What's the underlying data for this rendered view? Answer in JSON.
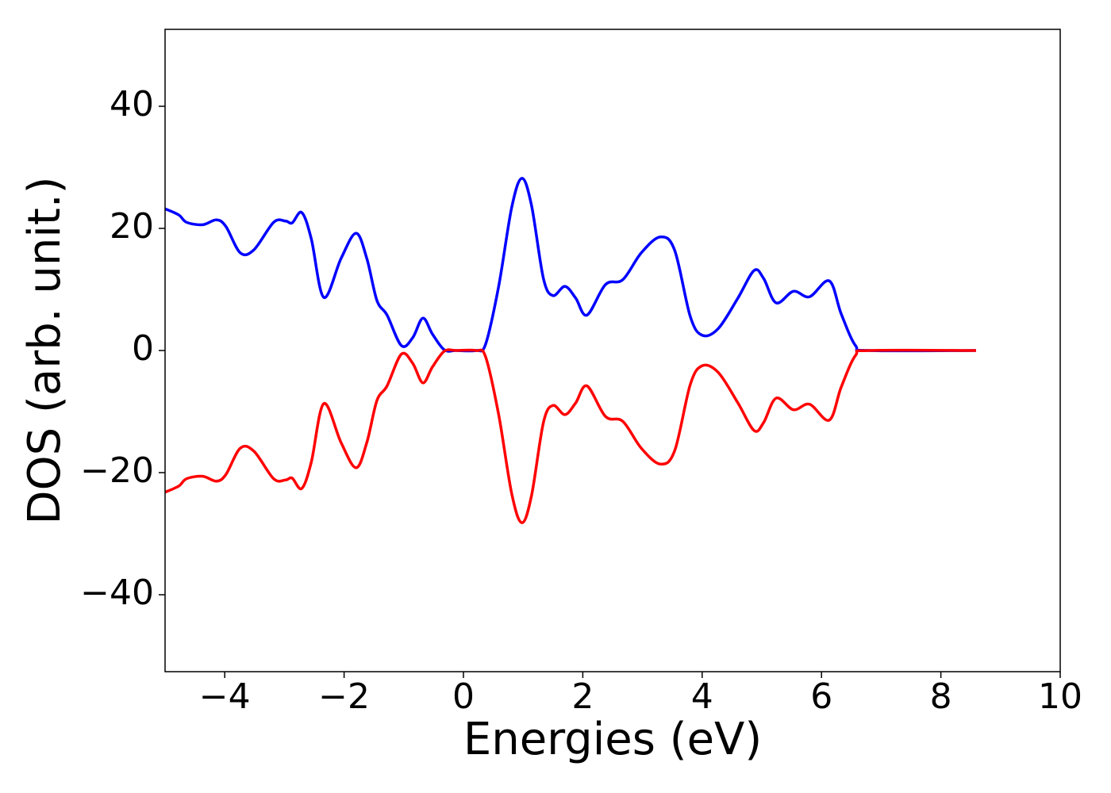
{
  "chart_data": {
    "type": "line",
    "xlabel": "Energies (eV)",
    "ylabel": "DOS (arb. unit.)",
    "x": [
      -5,
      -4.77,
      -4.64,
      -4.37,
      -4.14,
      -3.98,
      -3.74,
      -3.51,
      -3.18,
      -2.98,
      -2.87,
      -2.71,
      -2.55,
      -2.34,
      -2.05,
      -1.8,
      -1.62,
      -1.45,
      -1.28,
      -1.04,
      -0.85,
      -0.68,
      -0.52,
      -0.32,
      -0.12,
      0.21,
      0.37,
      0.59,
      0.81,
      0.98,
      1.14,
      1.34,
      1.5,
      1.7,
      1.88,
      2.07,
      2.38,
      2.67,
      2.98,
      3.3,
      3.54,
      3.8,
      4.0,
      4.27,
      4.6,
      4.87,
      5.03,
      5.24,
      5.53,
      5.8,
      6.13,
      6.33,
      6.57,
      6.8,
      8.59
    ],
    "series": [
      {
        "color": "#0000ff",
        "values": [
          23.2,
          22.2,
          21.0,
          20.6,
          21.4,
          20.3,
          16.0,
          16.5,
          21.0,
          21.2,
          20.9,
          22.6,
          18.3,
          8.7,
          15.1,
          19.2,
          15.1,
          8.2,
          5.8,
          0.8,
          2.1,
          5.3,
          2.7,
          0.1,
          0,
          0,
          1.0,
          10.5,
          23.5,
          28.2,
          23.8,
          11.8,
          9.0,
          10.5,
          8.6,
          5.8,
          10.8,
          11.6,
          16.0,
          18.6,
          16.4,
          5.6,
          2.5,
          3.6,
          8.6,
          13.1,
          11.8,
          7.8,
          9.7,
          8.8,
          11.4,
          6.0,
          0.8,
          0,
          0
        ]
      },
      {
        "color": "#ff0000",
        "values": [
          -23.2,
          -22.2,
          -21.0,
          -20.6,
          -21.4,
          -20.3,
          -16.0,
          -16.5,
          -21.0,
          -21.2,
          -20.9,
          -22.6,
          -18.3,
          -8.7,
          -15.1,
          -19.2,
          -15.1,
          -8.2,
          -5.8,
          -0.6,
          -2.1,
          -5.3,
          -2.7,
          -0.1,
          0,
          0,
          -1.0,
          -10.5,
          -23.5,
          -28.2,
          -23.8,
          -11.8,
          -9.0,
          -10.5,
          -8.6,
          -5.8,
          -10.8,
          -11.6,
          -16.0,
          -18.6,
          -16.4,
          -5.6,
          -2.5,
          -3.6,
          -8.6,
          -13.1,
          -11.8,
          -7.8,
          -9.7,
          -8.8,
          -11.4,
          -6.0,
          -0.8,
          0,
          0
        ]
      }
    ],
    "xlim": [
      -5,
      10
    ],
    "xticks": [
      {
        "value": -4,
        "label": "−4"
      },
      {
        "value": -2,
        "label": "−2"
      },
      0,
      2,
      4,
      6,
      8,
      10
    ],
    "ylim": [
      -52.6,
      52.6
    ],
    "yticks": [
      {
        "value": -40,
        "label": "−40"
      },
      {
        "value": -20,
        "label": "−20"
      },
      0,
      20,
      40
    ],
    "grid": false
  }
}
